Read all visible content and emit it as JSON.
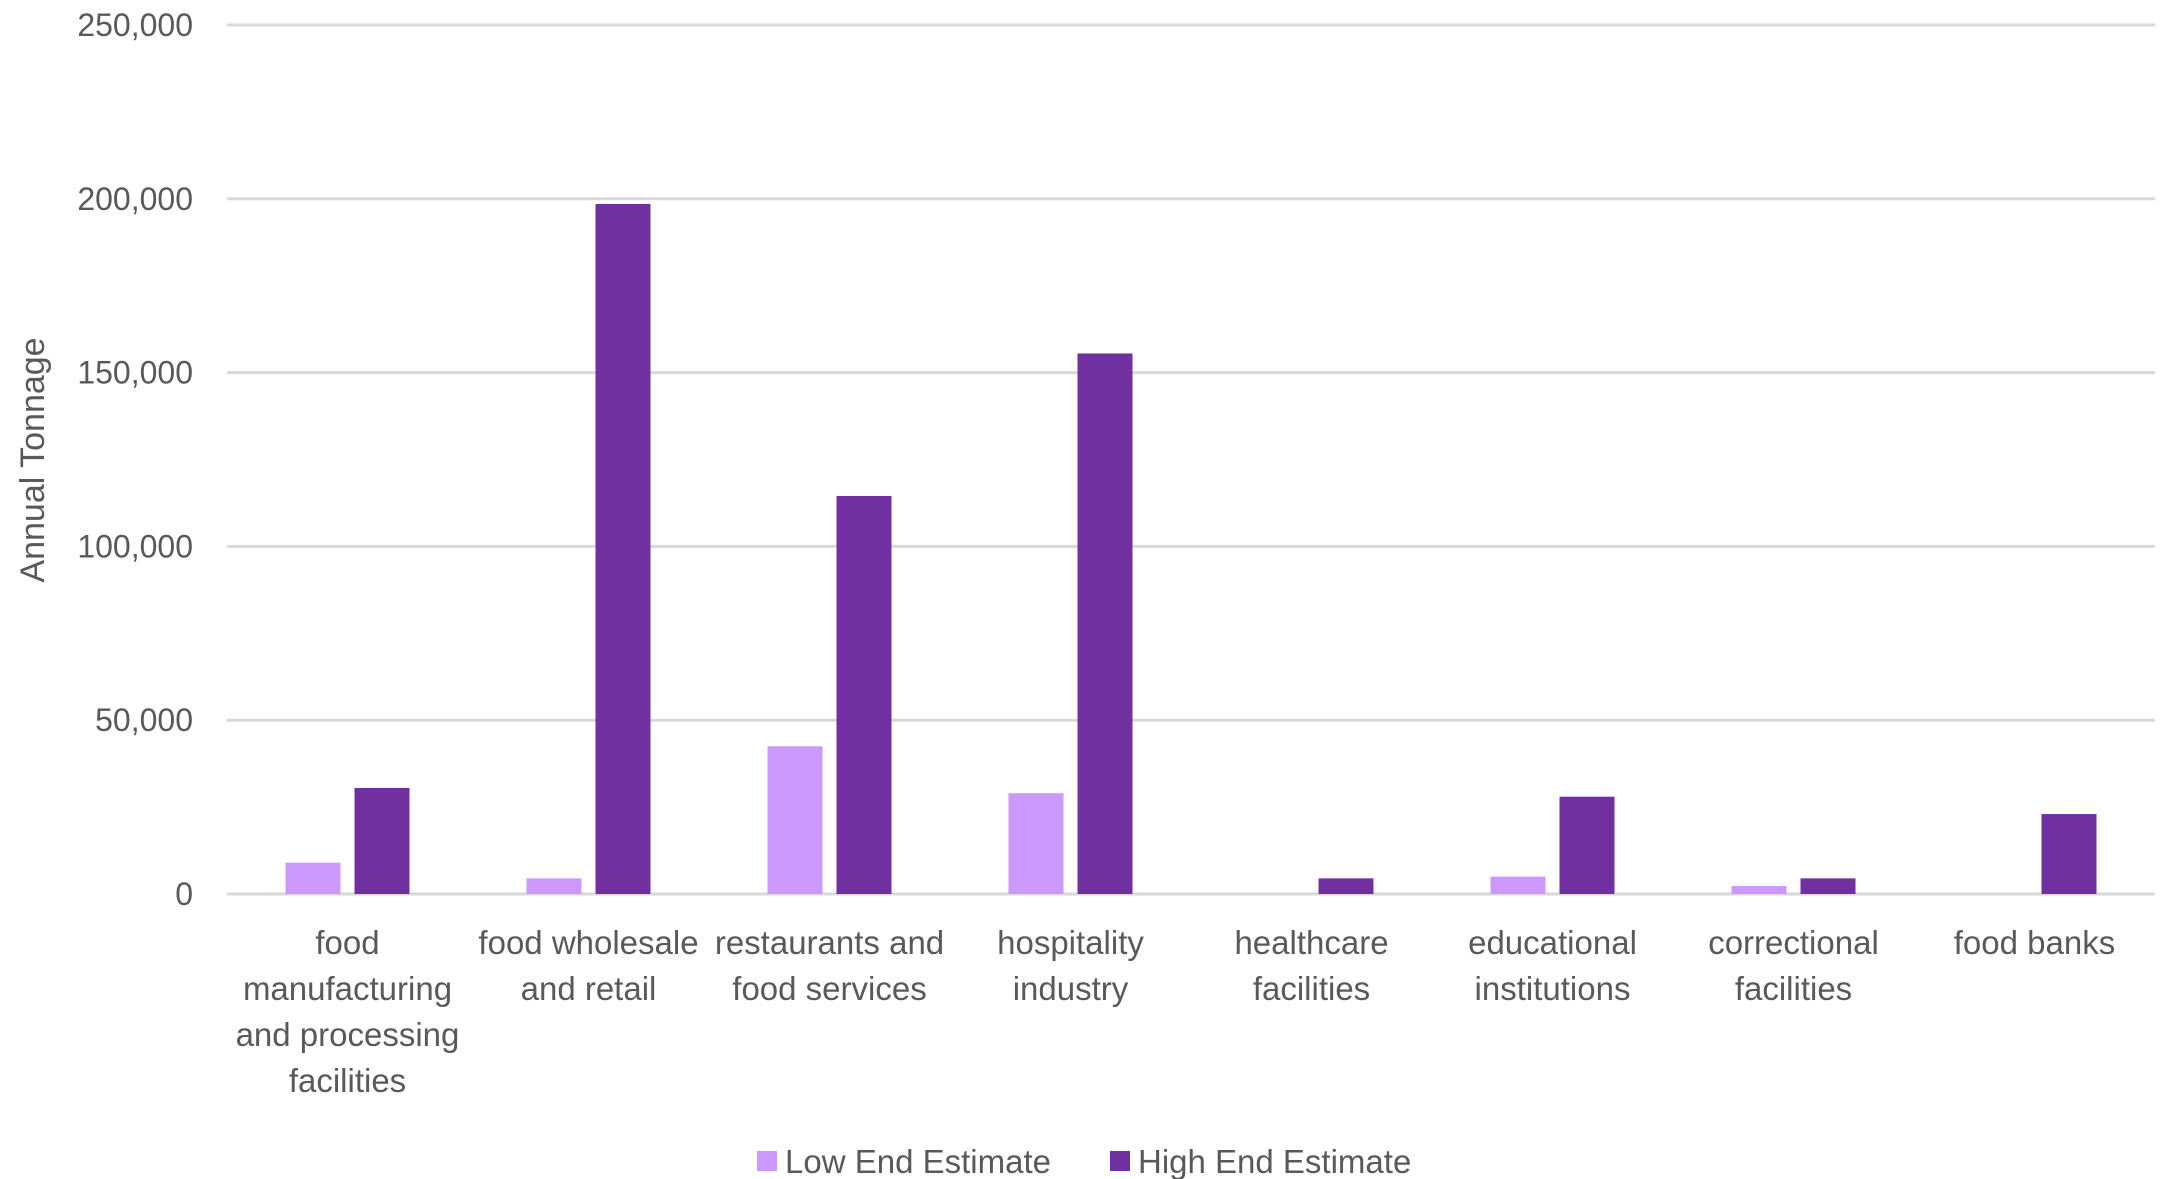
{
  "chart_data": {
    "type": "bar",
    "title": "",
    "xlabel": "",
    "ylabel": "Annual Tonnage",
    "ylim": [
      0,
      250000
    ],
    "yticks": [
      0,
      50000,
      100000,
      150000,
      200000,
      250000
    ],
    "ytick_labels": [
      "0",
      "50,000",
      "100,000",
      "150,000",
      "200,000",
      "250,000"
    ],
    "grid": true,
    "legend_position": "bottom",
    "categories": [
      [
        "food",
        "manufacturing",
        "and processing",
        "facilities"
      ],
      [
        "food wholesale",
        "and retail"
      ],
      [
        "restaurants and",
        "food services"
      ],
      [
        "hospitality",
        "industry"
      ],
      [
        "healthcare",
        "facilities"
      ],
      [
        "educational",
        "institutions"
      ],
      [
        "correctional",
        "facilities"
      ],
      [
        "food banks"
      ]
    ],
    "series": [
      {
        "name": "Low End Estimate",
        "color": "#cc99ff",
        "values": [
          9000,
          4500,
          42500,
          29000,
          0,
          5000,
          2300,
          0
        ]
      },
      {
        "name": "High End Estimate",
        "color": "#7030a0",
        "values": [
          30500,
          198500,
          114500,
          155500,
          4500,
          28000,
          4500,
          23000
        ]
      }
    ]
  }
}
